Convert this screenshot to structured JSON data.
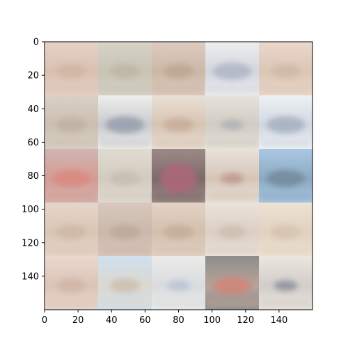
{
  "chart_data": {
    "type": "heatmap",
    "title": "",
    "xlabel": "",
    "ylabel": "",
    "xlim": [
      0,
      160
    ],
    "ylim": [
      160,
      0
    ],
    "image_shape": [
      160,
      160
    ],
    "grid_rows": 5,
    "grid_cols": 5,
    "tile_size": 32,
    "x_ticks": [
      0,
      20,
      40,
      60,
      80,
      100,
      120,
      140
    ],
    "y_ticks": [
      0,
      20,
      40,
      60,
      80,
      100,
      120,
      140
    ],
    "grid": false,
    "tiles": [
      [
        {
          "bg": "#e7d2c6",
          "mid": "#d8c1b0",
          "blob": "#c9b09b",
          "blob_shape": "diffuse"
        },
        {
          "bg": "#d6d3c8",
          "mid": "#c9c3b3",
          "blob": "#b7ae9c",
          "blob_shape": "diffuse"
        },
        {
          "bg": "#dccbc0",
          "mid": "#cdb8a6",
          "blob": "#b49c86",
          "blob_shape": "diffuse"
        },
        {
          "bg": "#edeeef",
          "mid": "#d2d6dd",
          "blob": "#a9b2c0",
          "blob_shape": "wide"
        },
        {
          "bg": "#ead8cb",
          "mid": "#dcc6b5",
          "blob": "#c8b09c",
          "blob_shape": "diffuse"
        }
      ],
      [
        {
          "bg": "#d9d1c6",
          "mid": "#cbbfb1",
          "blob": "#b9aa99",
          "blob_shape": "diffuse"
        },
        {
          "bg": "#eeeeec",
          "mid": "#c9cbce",
          "blob": "#8f98a8",
          "blob_shape": "wide"
        },
        {
          "bg": "#eae0d6",
          "mid": "#d7c4b2",
          "blob": "#bda18b",
          "blob_shape": "diffuse"
        },
        {
          "bg": "#e6e3dc",
          "mid": "#d2ccc2",
          "blob": "#a9a9b4",
          "blob_shape": "small"
        },
        {
          "bg": "#eef1f5",
          "mid": "#d2d8e2",
          "blob": "#9fa9bb",
          "blob_shape": "wide"
        }
      ],
      [
        {
          "bg": "#cfb5b3",
          "mid": "#d69c93",
          "blob": "#d9877c",
          "blob_shape": "wide"
        },
        {
          "bg": "#e0dbd2",
          "mid": "#d3cbbf",
          "blob": "#c0b6a7",
          "blob_shape": "diffuse"
        },
        {
          "bg": "#9c8a88",
          "mid": "#7e6a6b",
          "blob": "#b0667a",
          "blob_shape": "dark"
        },
        {
          "bg": "#e8e2db",
          "mid": "#d6c5b8",
          "blob": "#b88f82",
          "blob_shape": "small"
        },
        {
          "bg": "#a9c8e3",
          "mid": "#8eaac2",
          "blob": "#708596",
          "blob_shape": "wide"
        }
      ],
      [
        {
          "bg": "#e6d6ca",
          "mid": "#d9c6b6",
          "blob": "#c6ae99",
          "blob_shape": "diffuse"
        },
        {
          "bg": "#d8c8bd",
          "mid": "#cbb8aa",
          "blob": "#b5a08c",
          "blob_shape": "diffuse"
        },
        {
          "bg": "#e3d3c6",
          "mid": "#d3bfad",
          "blob": "#bca48d",
          "blob_shape": "diffuse"
        },
        {
          "bg": "#ebe2da",
          "mid": "#dccfc4",
          "blob": "#c9b7a9",
          "blob_shape": "diffuse"
        },
        {
          "bg": "#ede2d3",
          "mid": "#e1d2c0",
          "blob": "#cfbca6",
          "blob_shape": "diffuse"
        }
      ],
      [
        {
          "bg": "#ead8cf",
          "mid": "#dcc4b6",
          "blob": "#c9ad9c",
          "blob_shape": "diffuse"
        },
        {
          "bg": "#cfe0ee",
          "mid": "#dcd8cf",
          "blob": "#c4b39f",
          "blob_shape": "diffuse"
        },
        {
          "bg": "#ecebe8",
          "mid": "#d9dbe0",
          "blob": "#b4bfd0",
          "blob_shape": "small"
        },
        {
          "bg": "#8e8e8a",
          "mid": "#b7a39a",
          "blob": "#d48073",
          "blob_shape": "wide"
        },
        {
          "bg": "#ece6dd",
          "mid": "#d2cdca",
          "blob": "#7d8293",
          "blob_shape": "small"
        }
      ]
    ]
  }
}
